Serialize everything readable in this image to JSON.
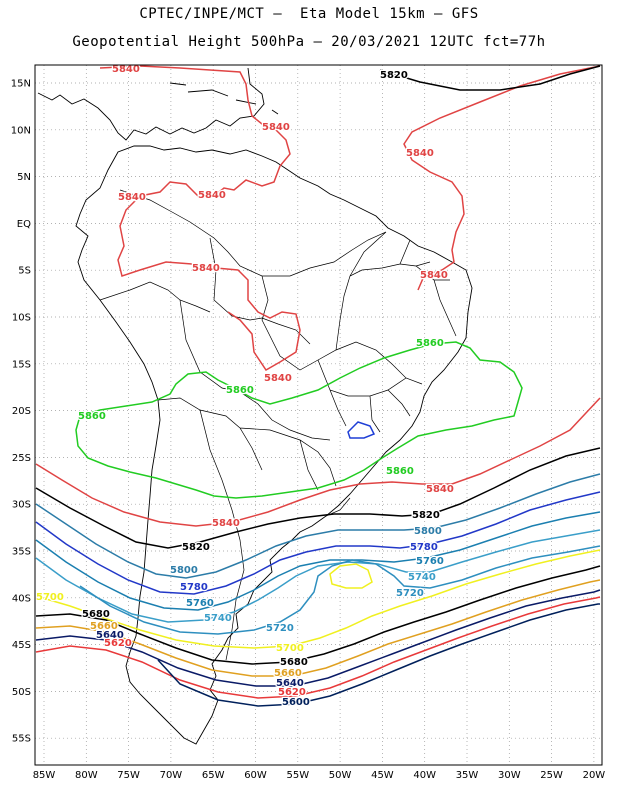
{
  "header": {
    "line1": "CPTEC/INPE/MCT –  Eta Model 15km – GFS",
    "line2": "Geopotential Height 500hPa – 20/03/2021 12UTC fct=77h"
  },
  "axes": {
    "lat_labels": [
      "15N",
      "10N",
      "5N",
      "EQ",
      "5S",
      "10S",
      "15S",
      "20S",
      "25S",
      "30S",
      "35S",
      "40S",
      "45S",
      "50S",
      "55S"
    ],
    "lon_labels": [
      "85W",
      "80W",
      "75W",
      "70W",
      "65W",
      "60W",
      "55W",
      "50W",
      "45W",
      "40W",
      "35W",
      "30W",
      "25W",
      "20W"
    ]
  },
  "contour_colors": {
    "5600": "#00205b",
    "5620": "#e8393a",
    "5640": "#0a1a66",
    "5660": "#e0a020",
    "5680": "#000000",
    "5700": "#f0f020",
    "5720": "#2e8fbf",
    "5740": "#3a9ec9",
    "5760": "#1b7fb0",
    "5780": "#2238c8",
    "5800": "#2c7ca8",
    "5820": "#000000",
    "5840": "#e04444",
    "5860": "#22cc22",
    "5880": "#1f3fd6"
  },
  "labels": [
    {
      "id": "5840-a",
      "text": "5840",
      "c": "5840"
    },
    {
      "id": "5820-a",
      "text": "5820",
      "c": "5820"
    },
    {
      "id": "5840-b",
      "text": "5840",
      "c": "5840"
    },
    {
      "id": "5840-c",
      "text": "5840",
      "c": "5840"
    },
    {
      "id": "5840-d",
      "text": "5840",
      "c": "5840"
    },
    {
      "id": "5840-e",
      "text": "5840",
      "c": "5840"
    },
    {
      "id": "5840-f",
      "text": "5840",
      "c": "5840"
    },
    {
      "id": "5840-g",
      "text": "5840",
      "c": "5840"
    },
    {
      "id": "5860-a",
      "text": "5860",
      "c": "5860"
    },
    {
      "id": "5840-h",
      "text": "5840",
      "c": "5840"
    },
    {
      "id": "5860-b",
      "text": "5860",
      "c": "5860"
    },
    {
      "id": "5860-c",
      "text": "5860",
      "c": "5860"
    },
    {
      "id": "5860-d",
      "text": "5860",
      "c": "5860"
    },
    {
      "id": "5840-i",
      "text": "5840",
      "c": "5840"
    },
    {
      "id": "5820-b",
      "text": "5820",
      "c": "5820"
    },
    {
      "id": "5840-j",
      "text": "5840",
      "c": "5840"
    },
    {
      "id": "5800-a",
      "text": "5800",
      "c": "5800"
    },
    {
      "id": "5780-a",
      "text": "5780",
      "c": "5780"
    },
    {
      "id": "5820-c",
      "text": "5820",
      "c": "5820"
    },
    {
      "id": "5760-a",
      "text": "5760",
      "c": "5760"
    },
    {
      "id": "5800-b",
      "text": "5800",
      "c": "5800"
    },
    {
      "id": "5740-a",
      "text": "5740",
      "c": "5740"
    },
    {
      "id": "5780-b",
      "text": "5780",
      "c": "5780"
    },
    {
      "id": "5720-a",
      "text": "5720",
      "c": "5720"
    },
    {
      "id": "5760-b",
      "text": "5760",
      "c": "5760"
    },
    {
      "id": "5700-a",
      "text": "5700",
      "c": "5700"
    },
    {
      "id": "5740-b",
      "text": "5740",
      "c": "5740"
    },
    {
      "id": "5680-a",
      "text": "5680",
      "c": "5680"
    },
    {
      "id": "5720-b",
      "text": "5720",
      "c": "5720"
    },
    {
      "id": "5660-a",
      "text": "5660",
      "c": "5660"
    },
    {
      "id": "5640-a",
      "text": "5640",
      "c": "5640"
    },
    {
      "id": "5620-a",
      "text": "5620",
      "c": "5620"
    },
    {
      "id": "5700-b",
      "text": "5700",
      "c": "5700"
    },
    {
      "id": "5680-b",
      "text": "5680",
      "c": "5680"
    },
    {
      "id": "5660-b",
      "text": "5660",
      "c": "5660"
    },
    {
      "id": "5640-b",
      "text": "5640",
      "c": "5640"
    },
    {
      "id": "5620-b",
      "text": "5620",
      "c": "5620"
    },
    {
      "id": "5600-a",
      "text": "5600",
      "c": "5600"
    }
  ]
}
